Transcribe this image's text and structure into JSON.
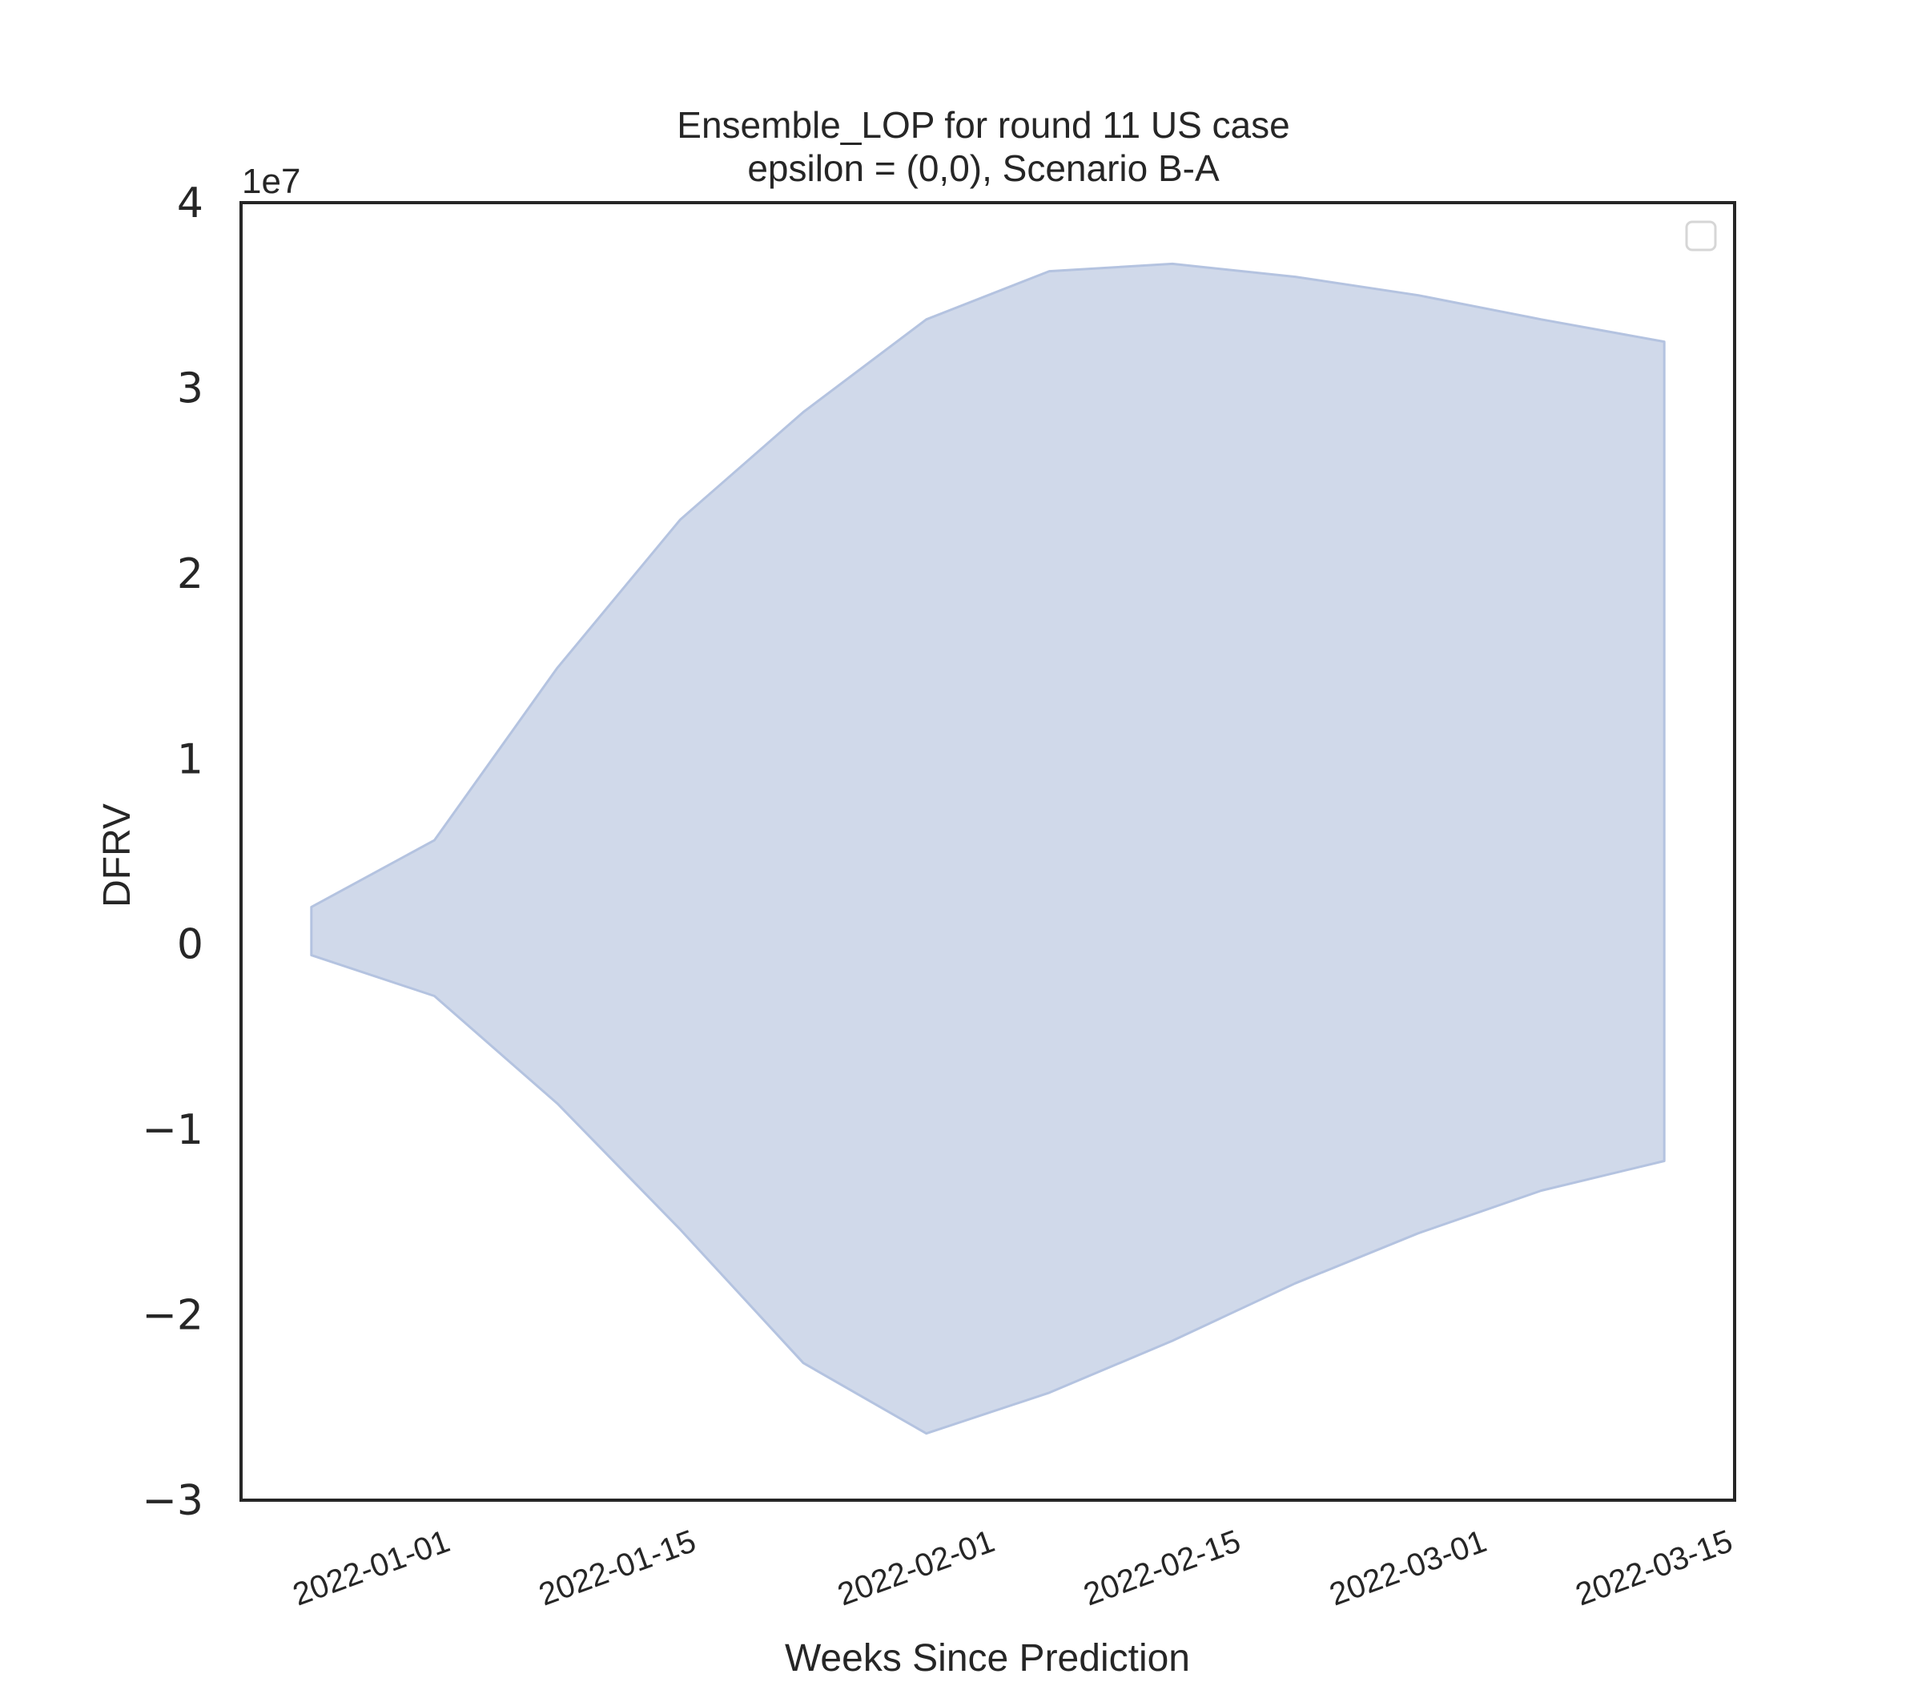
{
  "chart_data": {
    "type": "area",
    "title": "Ensemble_LOP for round 11 US case",
    "subtitle": "epsilon = (0,0), Scenario B-A",
    "xlabel": "Weeks Since Prediction",
    "ylabel": "DFRV",
    "y_offset_label": "1e7",
    "ylim": [
      -3,
      4
    ],
    "y_unit_multiplier": 10000000,
    "xlim": [
      "2021-12-20",
      "2022-03-15"
    ],
    "yticks": [
      {
        "value": 4,
        "label": "4"
      },
      {
        "value": 3,
        "label": "3"
      },
      {
        "value": 2,
        "label": "2"
      },
      {
        "value": 1,
        "label": "1"
      },
      {
        "value": 0,
        "label": "0"
      },
      {
        "value": -1,
        "label": "−1"
      },
      {
        "value": -2,
        "label": "−2"
      },
      {
        "value": -3,
        "label": "−3"
      }
    ],
    "xticks": [
      "2022-01-01",
      "2022-01-15",
      "2022-02-01",
      "2022-02-15",
      "2022-03-01",
      "2022-03-15"
    ],
    "grid": false,
    "legend": {
      "visible": true,
      "placement": "top-right",
      "entries": []
    },
    "fill_color": "#d0d9ea",
    "edge_color": "#b4c3e0",
    "band": {
      "x": [
        "2021-12-24",
        "2021-12-31",
        "2022-01-07",
        "2022-01-14",
        "2022-01-21",
        "2022-01-28",
        "2022-02-04",
        "2022-02-11",
        "2022-02-18",
        "2022-02-25",
        "2022-03-04",
        "2022-03-11"
      ],
      "upper": [
        0.2,
        0.56,
        1.49,
        2.29,
        2.87,
        3.37,
        3.63,
        3.67,
        3.6,
        3.5,
        3.37,
        3.25
      ],
      "lower": [
        -0.06,
        -0.28,
        -0.86,
        -1.54,
        -2.26,
        -2.64,
        -2.42,
        -2.14,
        -1.83,
        -1.56,
        -1.33,
        -1.17
      ]
    }
  }
}
